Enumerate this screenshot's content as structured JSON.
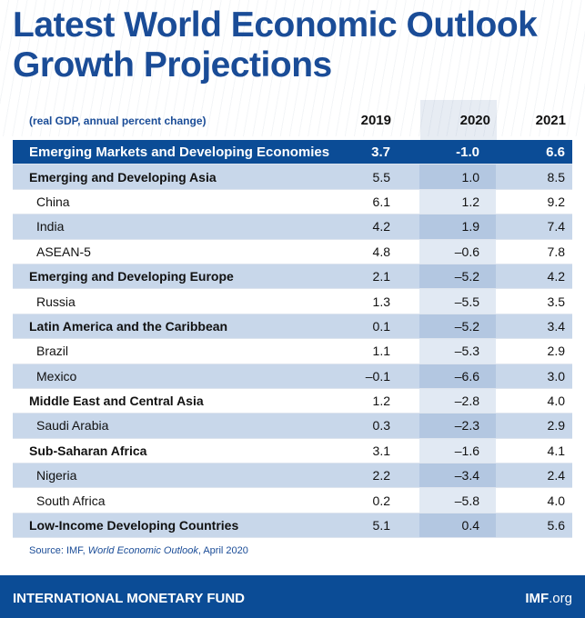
{
  "title": [
    "Latest World Economic Outlook",
    "Growth Projections"
  ],
  "unit": "(real GDP, annual percent change)",
  "years": [
    "2019",
    "2020",
    "2021"
  ],
  "rows": [
    {
      "label": "Emerging Markets and Developing Economies",
      "v": [
        "3.7",
        "-1.0",
        "6.6"
      ]
    },
    {
      "label": "Emerging and Developing Asia",
      "v": [
        "5.5",
        "1.0",
        "8.5"
      ]
    },
    {
      "label": "China",
      "v": [
        "6.1",
        "1.2",
        "9.2"
      ]
    },
    {
      "label": "India",
      "v": [
        "4.2",
        "1.9",
        "7.4"
      ]
    },
    {
      "label": "ASEAN-5",
      "v": [
        "4.8",
        "–0.6",
        "7.8"
      ]
    },
    {
      "label": "Emerging and Developing Europe",
      "v": [
        "2.1",
        "–5.2",
        "4.2"
      ]
    },
    {
      "label": "Russia",
      "v": [
        "1.3",
        "–5.5",
        "3.5"
      ]
    },
    {
      "label": "Latin America and the Caribbean",
      "v": [
        "0.1",
        "–5.2",
        "3.4"
      ]
    },
    {
      "label": "Brazil",
      "v": [
        "1.1",
        "–5.3",
        "2.9"
      ]
    },
    {
      "label": "Mexico",
      "v": [
        "–0.1",
        "–6.6",
        "3.0"
      ]
    },
    {
      "label": "Middle East and Central Asia",
      "v": [
        "1.2",
        "–2.8",
        "4.0"
      ]
    },
    {
      "label": "Saudi Arabia",
      "v": [
        "0.3",
        "–2.3",
        "2.9"
      ]
    },
    {
      "label": "Sub-Saharan Africa",
      "v": [
        "3.1",
        "–1.6",
        "4.1"
      ]
    },
    {
      "label": "Nigeria",
      "v": [
        "2.2",
        "–3.4",
        "2.4"
      ]
    },
    {
      "label": "South Africa",
      "v": [
        "0.2",
        "–5.8",
        "4.0"
      ]
    },
    {
      "label": "Low-Income Developing Countries",
      "v": [
        "5.1",
        "0.4",
        "5.6"
      ]
    }
  ],
  "source": {
    "prefix": "Source: IMF, ",
    "pub": "World Economic Outlook",
    "suffix": ", April 2020"
  },
  "footer": {
    "org": "INTERNATIONAL MONETARY FUND",
    "site_bold": "IMF",
    "site_rest": ".org"
  }
}
